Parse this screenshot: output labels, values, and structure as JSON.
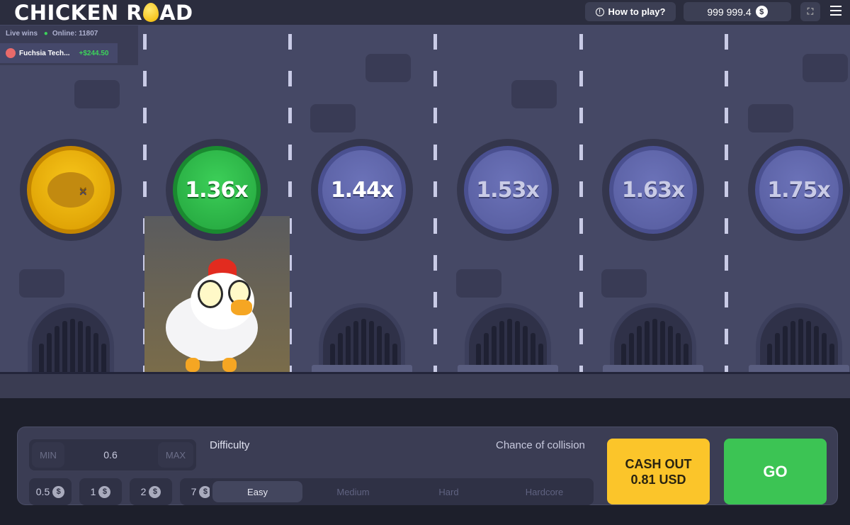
{
  "header": {
    "logo_left": "CHICKEN R",
    "logo_right": "AD",
    "how_to_play": "How to play?",
    "balance": "999 999.4",
    "currency_icon": "dollar-coin-icon"
  },
  "live": {
    "label": "Live wins",
    "online": "Online: 11807",
    "winner": "Fuchsia Tech...",
    "amount": "+$244.50"
  },
  "lanes": [
    {
      "state": "passed",
      "icon": "roast-chicken-icon"
    },
    {
      "state": "current",
      "multiplier": "1.36x"
    },
    {
      "state": "next",
      "multiplier": "1.44x"
    },
    {
      "state": "locked",
      "multiplier": "1.53x"
    },
    {
      "state": "locked",
      "multiplier": "1.63x"
    },
    {
      "state": "locked",
      "multiplier": "1.75x"
    }
  ],
  "bet": {
    "min": "MIN",
    "value": "0.6",
    "max": "MAX",
    "chips": [
      "0.5",
      "1",
      "2",
      "7"
    ]
  },
  "difficulty": {
    "label": "Difficulty",
    "chance": "Chance of collision",
    "options": [
      "Easy",
      "Medium",
      "Hard",
      "Hardcore"
    ],
    "selected": "Easy"
  },
  "cashout": {
    "line1": "CASH OUT",
    "line2": "0.81 USD"
  },
  "go": "GO",
  "colors": {
    "green": "#3cc454",
    "yellow": "#fbc52a",
    "bg": "#454865"
  }
}
